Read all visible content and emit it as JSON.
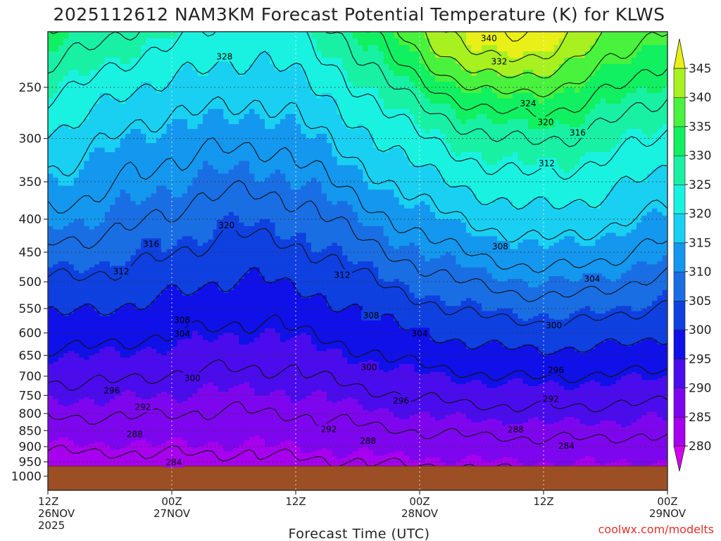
{
  "chart_data": {
    "type": "contour",
    "title": "2025112612 NAM3KM Forecast Potential Temperature (K) for KLWS",
    "xlabel": "Forecast Time (UTC)",
    "ylabel": "",
    "x_ticks": [
      {
        "hour": 0,
        "lines": [
          "12Z",
          "26NOV",
          "2025"
        ]
      },
      {
        "hour": 12,
        "lines": [
          "00Z",
          "27NOV"
        ]
      },
      {
        "hour": 24,
        "lines": [
          "12Z"
        ]
      },
      {
        "hour": 36,
        "lines": [
          "00Z",
          "28NOV"
        ]
      },
      {
        "hour": 48,
        "lines": [
          "12Z"
        ]
      },
      {
        "hour": 60,
        "lines": [
          "00Z",
          "29NOV"
        ]
      }
    ],
    "xlim": [
      0,
      60
    ],
    "y_ticks": [
      250,
      300,
      350,
      400,
      450,
      500,
      550,
      600,
      650,
      700,
      750,
      800,
      850,
      900,
      950,
      1000
    ],
    "ylim": [
      1000,
      200
    ],
    "y_scale": "log-pressure",
    "surface_pressure": 965,
    "colorbar": {
      "ticks": [
        280,
        285,
        290,
        295,
        300,
        305,
        310,
        315,
        320,
        325,
        330,
        335,
        340,
        345
      ],
      "levels": [
        280,
        285,
        290,
        295,
        300,
        305,
        310,
        315,
        320,
        325,
        330,
        335,
        340,
        345
      ],
      "colors": [
        "#a600ee",
        "#7e06ee",
        "#4a0ced",
        "#1010e8",
        "#0f40e0",
        "#1a6ee3",
        "#1497ee",
        "#19d0f2",
        "#1af2e1",
        "#18f1a4",
        "#10f060",
        "#49f23c",
        "#a8f020",
        "#e8f018"
      ],
      "extend": "both"
    },
    "contour_interval": 4,
    "contour_labels": [
      {
        "value": "328",
        "hour": 17.1,
        "p": 224
      },
      {
        "value": "340",
        "hour": 42.7,
        "p": 210
      },
      {
        "value": "332",
        "hour": 43.7,
        "p": 228
      },
      {
        "value": "324",
        "hour": 46.5,
        "p": 265
      },
      {
        "value": "320",
        "hour": 48.2,
        "p": 283
      },
      {
        "value": "316",
        "hour": 51.3,
        "p": 294
      },
      {
        "value": "312",
        "hour": 48.3,
        "p": 328
      },
      {
        "value": "320",
        "hour": 17.3,
        "p": 409
      },
      {
        "value": "316",
        "hour": 10.0,
        "p": 437
      },
      {
        "value": "312",
        "hour": 7.1,
        "p": 482
      },
      {
        "value": "308",
        "hour": 43.8,
        "p": 441
      },
      {
        "value": "312",
        "hour": 28.5,
        "p": 488
      },
      {
        "value": "304",
        "hour": 52.7,
        "p": 495
      },
      {
        "value": "308",
        "hour": 13.0,
        "p": 573
      },
      {
        "value": "304",
        "hour": 13.0,
        "p": 602
      },
      {
        "value": "308",
        "hour": 31.3,
        "p": 564
      },
      {
        "value": "304",
        "hour": 36.0,
        "p": 601
      },
      {
        "value": "300",
        "hour": 49.0,
        "p": 584
      },
      {
        "value": "300",
        "hour": 31.1,
        "p": 678
      },
      {
        "value": "300",
        "hour": 14.0,
        "p": 705
      },
      {
        "value": "296",
        "hour": 49.2,
        "p": 685
      },
      {
        "value": "296",
        "hour": 6.2,
        "p": 737
      },
      {
        "value": "296",
        "hour": 34.2,
        "p": 764
      },
      {
        "value": "292",
        "hour": 48.7,
        "p": 760
      },
      {
        "value": "292",
        "hour": 9.2,
        "p": 782
      },
      {
        "value": "292",
        "hour": 27.2,
        "p": 846
      },
      {
        "value": "288",
        "hour": 8.4,
        "p": 861
      },
      {
        "value": "288",
        "hour": 31.0,
        "p": 882
      },
      {
        "value": "288",
        "hour": 45.3,
        "p": 847
      },
      {
        "value": "284",
        "hour": 50.2,
        "p": 898
      },
      {
        "value": "284",
        "hour": 12.2,
        "p": 952
      }
    ],
    "credit": "coolwx.com/modelts"
  }
}
